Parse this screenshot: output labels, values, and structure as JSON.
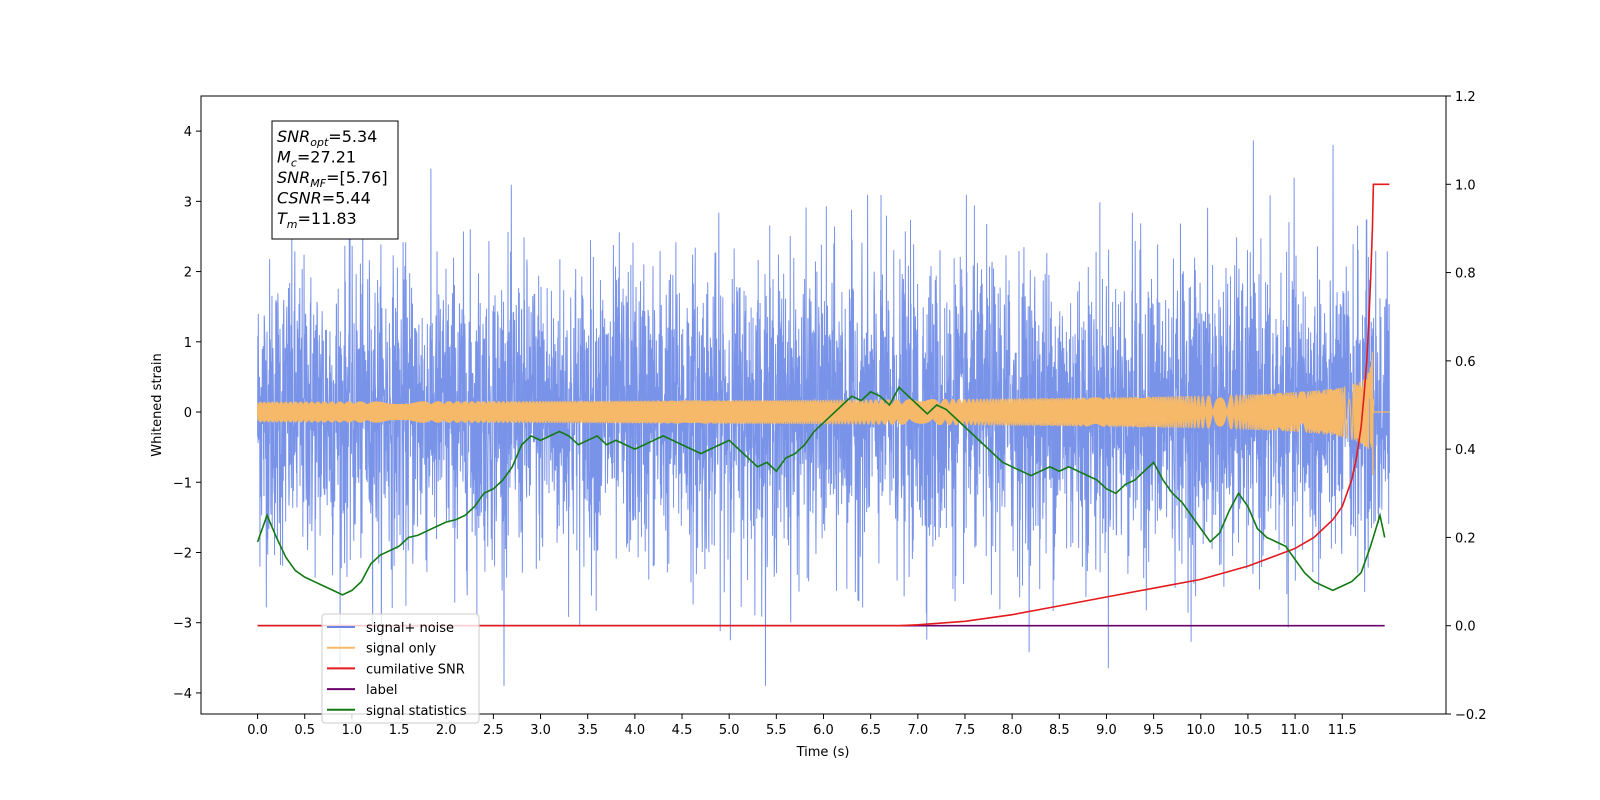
{
  "chart_data": {
    "type": "line",
    "xlabel": "Time (s)",
    "ylabel": "Whitened strain",
    "xlim": [
      -0.6,
      12.6
    ],
    "ylim": [
      -4.3,
      4.5
    ],
    "y2lim": [
      -0.2,
      1.2
    ],
    "x_ticks": [
      0.0,
      0.5,
      1.0,
      1.5,
      2.0,
      2.5,
      3.0,
      3.5,
      4.0,
      4.5,
      5.0,
      5.5,
      6.0,
      6.5,
      7.0,
      7.5,
      8.0,
      8.5,
      9.0,
      9.5,
      10.0,
      10.5,
      11.0,
      11.5
    ],
    "x_tick_labels": [
      "0.0",
      "0.5",
      "1.0",
      "1.5",
      "2.0",
      "2.5",
      "3.0",
      "3.5",
      "4.0",
      "4.5",
      "5.0",
      "5.5",
      "6.0",
      "6.5",
      "7.0",
      "7.5",
      "8.0",
      "8.5",
      "9.0",
      "9.5",
      "10.0",
      "10.5",
      "11.0",
      "11.5"
    ],
    "y_ticks": [
      -4,
      -3,
      -2,
      -1,
      0,
      1,
      2,
      3,
      4
    ],
    "y_tick_labels": [
      "−4",
      "−3",
      "−2",
      "−1",
      "0",
      "1",
      "2",
      "3",
      "4"
    ],
    "y2_ticks": [
      -0.2,
      0.0,
      0.2,
      0.4,
      0.6,
      0.8,
      1.0,
      1.2
    ],
    "y2_tick_labels": [
      "−0.2",
      "0.0",
      "0.2",
      "0.4",
      "0.6",
      "0.8",
      "1.0",
      "1.2"
    ],
    "grid": false,
    "legend_position": "lower-left",
    "stats_box": {
      "lines": [
        {
          "sym": "SNR",
          "sub": "opt",
          "val": "=5.34"
        },
        {
          "sym": "M",
          "sub": "c",
          "val": "=27.21"
        },
        {
          "sym": "SNR",
          "sub": "MF",
          "val": "=[5.76]"
        },
        {
          "sym": "CSNR",
          "sub": "",
          "val": "=5.44"
        },
        {
          "sym": "T",
          "sub": "m",
          "val": "=11.83"
        }
      ]
    },
    "series": [
      {
        "name": "signal+ noise",
        "color": "#6a87e6",
        "axis": "left",
        "kind": "noise",
        "x_range": [
          0.0,
          12.0
        ],
        "envelope": [
          -3.9,
          4.1
        ]
      },
      {
        "name": "signal only",
        "color": "#f5b969",
        "axis": "left",
        "kind": "chirp",
        "merger_time": 11.83,
        "peak_amplitude": 1.2
      },
      {
        "name": "cumilative SNR",
        "color": "#e41a1c",
        "axis": "right",
        "x": [
          0.0,
          6.0,
          6.8,
          7.0,
          7.5,
          8.0,
          8.5,
          9.0,
          9.5,
          10.0,
          10.5,
          11.0,
          11.2,
          11.4,
          11.5,
          11.6,
          11.65,
          11.7,
          11.73,
          11.76,
          11.78,
          11.8,
          11.82,
          11.83,
          11.84,
          12.0
        ],
        "y": [
          0.0,
          0.0,
          0.0,
          0.002,
          0.01,
          0.025,
          0.045,
          0.065,
          0.085,
          0.105,
          0.135,
          0.175,
          0.2,
          0.24,
          0.27,
          0.33,
          0.38,
          0.45,
          0.52,
          0.6,
          0.68,
          0.78,
          0.9,
          1.0,
          1.0,
          1.0
        ]
      },
      {
        "name": "label",
        "color": "#6b006b",
        "axis": "right",
        "x": [
          0.0,
          11.95
        ],
        "y": [
          0.0,
          0.0
        ]
      },
      {
        "name": "signal statistics",
        "color": "#137a13",
        "axis": "right",
        "x": [
          0.0,
          0.1,
          0.2,
          0.3,
          0.4,
          0.5,
          0.6,
          0.7,
          0.8,
          0.9,
          1.0,
          1.1,
          1.2,
          1.3,
          1.4,
          1.5,
          1.6,
          1.7,
          1.8,
          1.9,
          2.0,
          2.1,
          2.2,
          2.3,
          2.4,
          2.5,
          2.6,
          2.7,
          2.8,
          2.9,
          3.0,
          3.1,
          3.2,
          3.3,
          3.4,
          3.5,
          3.6,
          3.7,
          3.8,
          3.9,
          4.0,
          4.1,
          4.2,
          4.3,
          4.4,
          4.5,
          4.6,
          4.7,
          4.8,
          4.9,
          5.0,
          5.1,
          5.2,
          5.3,
          5.4,
          5.5,
          5.6,
          5.7,
          5.8,
          5.9,
          6.0,
          6.1,
          6.2,
          6.3,
          6.4,
          6.5,
          6.6,
          6.7,
          6.8,
          6.9,
          7.0,
          7.1,
          7.2,
          7.3,
          7.4,
          7.5,
          7.6,
          7.7,
          7.8,
          7.9,
          8.0,
          8.1,
          8.2,
          8.3,
          8.4,
          8.5,
          8.6,
          8.7,
          8.8,
          8.9,
          9.0,
          9.1,
          9.2,
          9.3,
          9.4,
          9.5,
          9.6,
          9.7,
          9.8,
          9.9,
          10.0,
          10.1,
          10.2,
          10.3,
          10.4,
          10.5,
          10.6,
          10.7,
          10.8,
          10.9,
          11.0,
          11.1,
          11.2,
          11.3,
          11.4,
          11.5,
          11.6,
          11.7,
          11.8,
          11.9,
          11.95
        ],
        "y": [
          0.19,
          0.25,
          0.2,
          0.155,
          0.125,
          0.11,
          0.1,
          0.09,
          0.08,
          0.07,
          0.08,
          0.1,
          0.14,
          0.16,
          0.17,
          0.18,
          0.2,
          0.205,
          0.215,
          0.225,
          0.235,
          0.24,
          0.25,
          0.27,
          0.3,
          0.31,
          0.33,
          0.36,
          0.41,
          0.43,
          0.42,
          0.43,
          0.44,
          0.43,
          0.41,
          0.42,
          0.43,
          0.41,
          0.42,
          0.41,
          0.4,
          0.41,
          0.42,
          0.43,
          0.42,
          0.41,
          0.4,
          0.39,
          0.4,
          0.41,
          0.42,
          0.4,
          0.38,
          0.36,
          0.37,
          0.35,
          0.38,
          0.39,
          0.41,
          0.44,
          0.46,
          0.48,
          0.5,
          0.52,
          0.51,
          0.53,
          0.52,
          0.5,
          0.54,
          0.52,
          0.5,
          0.48,
          0.5,
          0.49,
          0.47,
          0.45,
          0.43,
          0.41,
          0.39,
          0.37,
          0.36,
          0.35,
          0.34,
          0.35,
          0.36,
          0.35,
          0.36,
          0.35,
          0.34,
          0.33,
          0.31,
          0.3,
          0.32,
          0.33,
          0.35,
          0.37,
          0.33,
          0.3,
          0.28,
          0.25,
          0.22,
          0.19,
          0.21,
          0.26,
          0.3,
          0.27,
          0.22,
          0.2,
          0.19,
          0.18,
          0.15,
          0.12,
          0.1,
          0.09,
          0.08,
          0.09,
          0.1,
          0.12,
          0.18,
          0.25,
          0.2
        ]
      }
    ],
    "legend": [
      {
        "label": "signal+ noise",
        "color": "#6a87e6"
      },
      {
        "label": "signal only",
        "color": "#f5b969"
      },
      {
        "label": "cumilative SNR",
        "color": "#e41a1c"
      },
      {
        "label": "label",
        "color": "#6b006b"
      },
      {
        "label": "signal statistics",
        "color": "#137a13"
      }
    ]
  }
}
